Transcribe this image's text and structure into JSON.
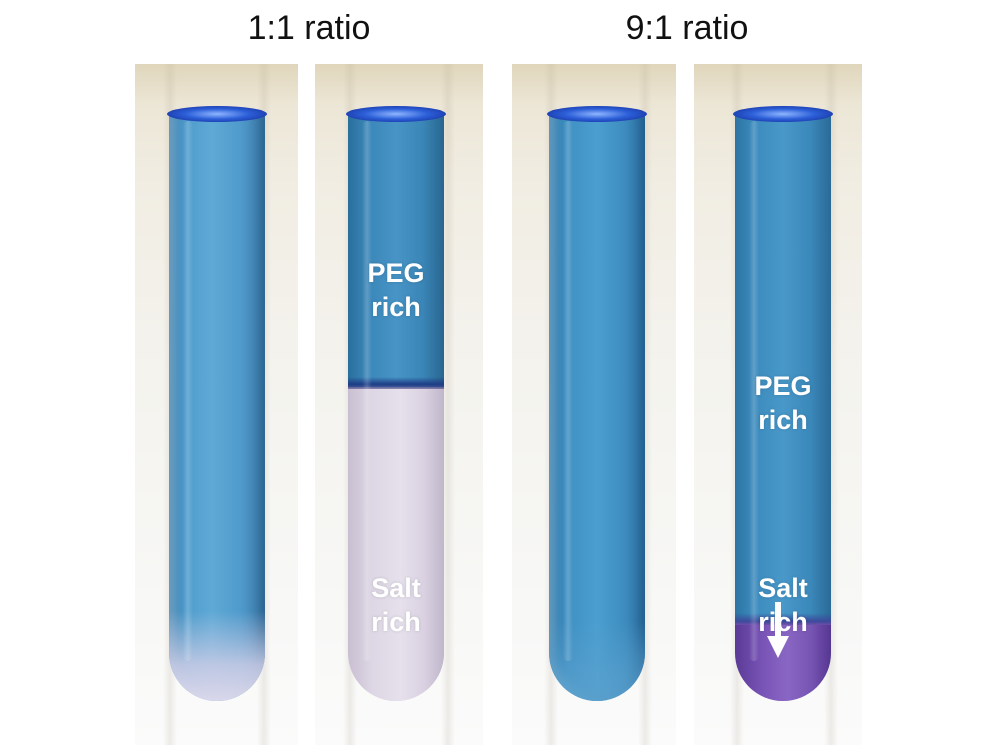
{
  "headings": {
    "left": "1:1 ratio",
    "right": "9:1 ratio"
  },
  "tubes": [
    {
      "id": 1,
      "group": "1:1 ratio",
      "phase_separated": false
    },
    {
      "id": 2,
      "group": "1:1 ratio",
      "phase_separated": true,
      "labels": {
        "upper_line1": "PEG",
        "upper_line2": "rich",
        "lower_line1": "Salt",
        "lower_line2": "rich"
      }
    },
    {
      "id": 3,
      "group": "9:1 ratio",
      "phase_separated": false
    },
    {
      "id": 4,
      "group": "9:1 ratio",
      "phase_separated": true,
      "labels": {
        "upper_line1": "PEG",
        "upper_line2": "rich",
        "lower_line1": "Salt",
        "lower_line2": "rich"
      },
      "arrow_icon": "arrow-down-icon"
    }
  ],
  "colors": {
    "peg_phase": "#3f8fc2",
    "salt_phase_1to1": "#ddd6e4",
    "salt_phase_9to1": "#7a55b8",
    "meniscus": "#2c5fd8",
    "label_text": "#ffffff",
    "heading_text": "#111111"
  }
}
